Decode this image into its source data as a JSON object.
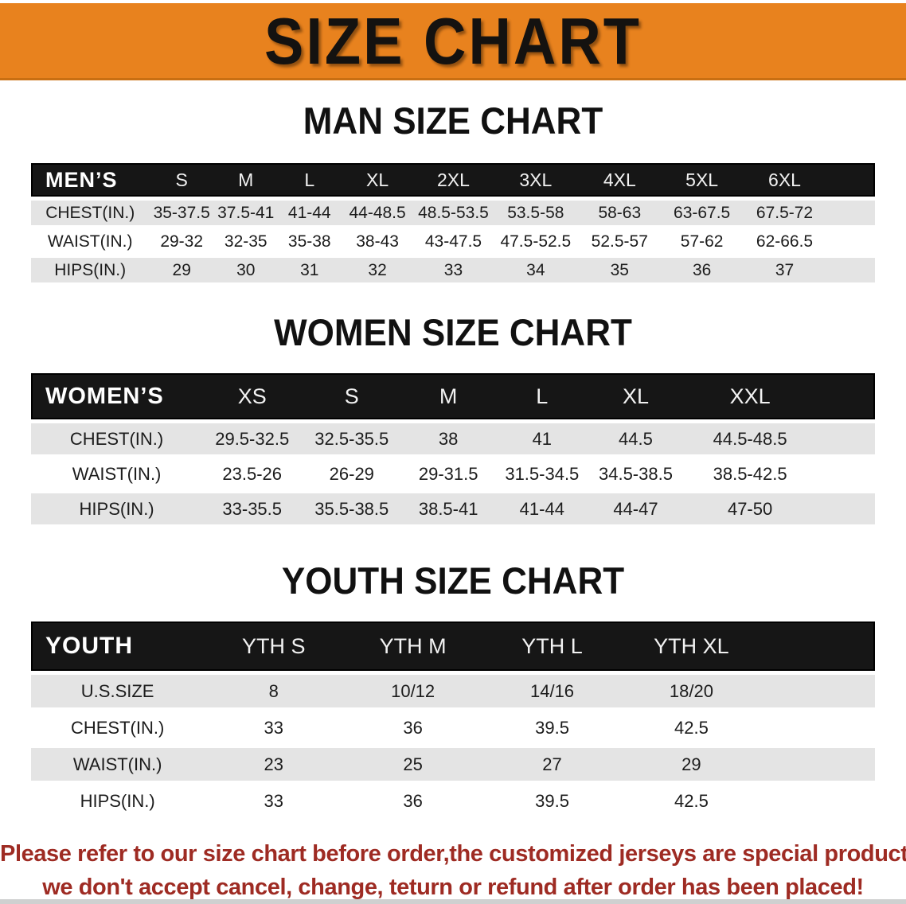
{
  "colors": {
    "banner_bg": "#E8821E",
    "header_bar": "#161616",
    "row_stripe": "#E4E4E4",
    "disclaimer_red": "#9E2B23"
  },
  "banner": {
    "title": "SIZE CHART"
  },
  "sections": {
    "men": {
      "heading": "MAN SIZE CHART",
      "table": {
        "header": [
          "MEN’S",
          "S",
          "M",
          "L",
          "XL",
          "2XL",
          "3XL",
          "4XL",
          "5XL",
          "6XL"
        ],
        "rows": [
          [
            "CHEST(IN.)",
            "35-37.5",
            "37.5-41",
            "41-44",
            "44-48.5",
            "48.5-53.5",
            "53.5-58",
            "58-63",
            "63-67.5",
            "67.5-72"
          ],
          [
            "WAIST(IN.)",
            "29-32",
            "32-35",
            "35-38",
            "38-43",
            "43-47.5",
            "47.5-52.5",
            "52.5-57",
            "57-62",
            "62-66.5"
          ],
          [
            "HIPS(IN.)",
            "29",
            "30",
            "31",
            "32",
            "33",
            "34",
            "35",
            "36",
            "37"
          ]
        ]
      }
    },
    "women": {
      "heading": "WOMEN SIZE CHART",
      "table": {
        "header": [
          "WOMEN’S",
          "XS",
          "S",
          "M",
          "L",
          "XL",
          "XXL"
        ],
        "rows": [
          [
            "CHEST(IN.)",
            "29.5-32.5",
            "32.5-35.5",
            "38",
            "41",
            "44.5",
            "44.5-48.5"
          ],
          [
            "WAIST(IN.)",
            "23.5-26",
            "26-29",
            "29-31.5",
            "31.5-34.5",
            "34.5-38.5",
            "38.5-42.5"
          ],
          [
            "HIPS(IN.)",
            "33-35.5",
            "35.5-38.5",
            "38.5-41",
            "41-44",
            "44-47",
            "47-50"
          ]
        ]
      }
    },
    "youth": {
      "heading": "YOUTH SIZE CHART",
      "table": {
        "header": [
          "YOUTH",
          "YTH S",
          "YTH M",
          "YTH L",
          "YTH XL"
        ],
        "rows": [
          [
            "U.S.SIZE",
            "8",
            "10/12",
            "14/16",
            "18/20"
          ],
          [
            "CHEST(IN.)",
            "33",
            "36",
            "39.5",
            "42.5"
          ],
          [
            "WAIST(IN.)",
            "23",
            "25",
            "27",
            "29"
          ],
          [
            "HIPS(IN.)",
            "33",
            "36",
            "39.5",
            "42.5"
          ]
        ]
      }
    }
  },
  "disclaimer": {
    "line1": "Please refer to our size chart before order,the customized jerseys are special products,",
    "line2": "we don't accept cancel, change, teturn or refund after order has been placed!"
  }
}
